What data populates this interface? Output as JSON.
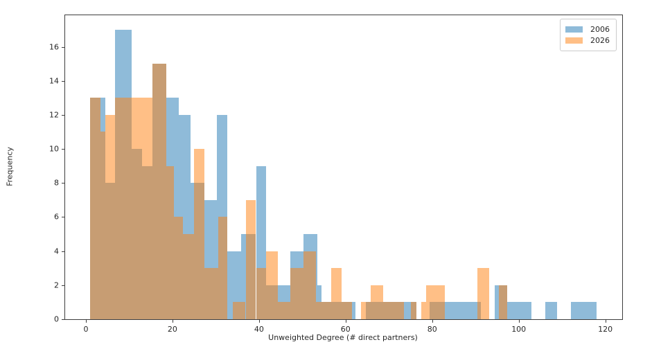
{
  "chart_data": {
    "type": "histogram",
    "title": "",
    "xlabel": "Unweighted Degree (# direct partners)",
    "ylabel": "Frequency",
    "xlim": [
      -4.8,
      123.9
    ],
    "ylim": [
      0,
      17.85
    ],
    "x_ticks": [
      0,
      20,
      40,
      60,
      80,
      100,
      120
    ],
    "y_ticks": [
      0,
      2,
      4,
      6,
      8,
      10,
      12,
      14,
      16
    ],
    "grid": false,
    "legend_position": "upper right",
    "overlap_note": "two alpha-blended histograms; overlap renders brown",
    "series": [
      {
        "name": "2006",
        "color": "#1f77b4",
        "alpha": 0.5,
        "bins_format": [
          "bin_start",
          "bin_end",
          "frequency"
        ],
        "bins": [
          [
            0.9,
            4.5,
            13
          ],
          [
            4.5,
            6.8,
            8
          ],
          [
            6.8,
            10.5,
            17
          ],
          [
            10.5,
            12.9,
            10
          ],
          [
            12.9,
            15.3,
            9
          ],
          [
            15.3,
            18.5,
            15
          ],
          [
            18.5,
            21.4,
            13
          ],
          [
            21.4,
            24.1,
            12
          ],
          [
            24.1,
            27.3,
            8
          ],
          [
            27.3,
            30.2,
            7
          ],
          [
            30.2,
            32.6,
            12
          ],
          [
            32.6,
            35.8,
            4
          ],
          [
            35.8,
            39.3,
            5
          ],
          [
            39.3,
            41.7,
            9
          ],
          [
            41.7,
            44.4,
            2
          ],
          [
            44.4,
            47.3,
            2
          ],
          [
            47.3,
            50.2,
            4
          ],
          [
            50.2,
            53.4,
            5
          ],
          [
            53.4,
            54.5,
            2
          ],
          [
            54.5,
            62.2,
            1
          ],
          [
            62.2,
            64.6,
            0
          ],
          [
            64.6,
            76.4,
            1
          ],
          [
            76.4,
            79.4,
            0
          ],
          [
            79.4,
            91.3,
            1
          ],
          [
            91.3,
            94.5,
            0
          ],
          [
            94.5,
            97.4,
            2
          ],
          [
            97.4,
            103.0,
            1
          ],
          [
            103.0,
            106.2,
            0
          ],
          [
            106.2,
            108.9,
            1
          ],
          [
            108.9,
            112.1,
            0
          ],
          [
            112.1,
            118.0,
            1
          ]
        ]
      },
      {
        "name": "2026",
        "color": "#ff7f0e",
        "alpha": 0.5,
        "bins_format": [
          "bin_start",
          "bin_end",
          "frequency"
        ],
        "bins": [
          [
            0.9,
            3.3,
            13
          ],
          [
            3.3,
            4.5,
            11
          ],
          [
            4.5,
            6.8,
            12
          ],
          [
            6.8,
            15.3,
            13
          ],
          [
            15.3,
            18.5,
            15
          ],
          [
            18.5,
            20.3,
            9
          ],
          [
            20.3,
            22.4,
            6
          ],
          [
            22.4,
            24.9,
            5
          ],
          [
            24.9,
            27.3,
            10
          ],
          [
            27.3,
            30.5,
            3
          ],
          [
            30.5,
            32.6,
            6
          ],
          [
            32.6,
            33.9,
            0
          ],
          [
            33.9,
            36.9,
            1
          ],
          [
            36.9,
            39.3,
            7
          ],
          [
            39.3,
            41.7,
            3
          ],
          [
            41.7,
            44.4,
            4
          ],
          [
            44.4,
            47.3,
            1
          ],
          [
            47.3,
            50.2,
            3
          ],
          [
            50.2,
            53.2,
            4
          ],
          [
            53.2,
            56.6,
            1
          ],
          [
            56.6,
            59.0,
            3
          ],
          [
            59.0,
            61.4,
            1
          ],
          [
            61.4,
            63.6,
            0
          ],
          [
            63.6,
            65.8,
            1
          ],
          [
            65.8,
            68.6,
            2
          ],
          [
            68.6,
            73.5,
            1
          ],
          [
            73.5,
            75.0,
            0
          ],
          [
            75.0,
            76.4,
            1
          ],
          [
            76.4,
            77.4,
            0
          ],
          [
            77.4,
            78.6,
            1
          ],
          [
            78.6,
            83.0,
            2
          ],
          [
            83.0,
            90.5,
            0
          ],
          [
            90.5,
            93.2,
            3
          ],
          [
            93.2,
            95.4,
            0
          ],
          [
            95.4,
            97.4,
            2
          ]
        ]
      }
    ]
  },
  "legend": {
    "items": [
      {
        "label": "2006"
      },
      {
        "label": "2026"
      }
    ]
  }
}
